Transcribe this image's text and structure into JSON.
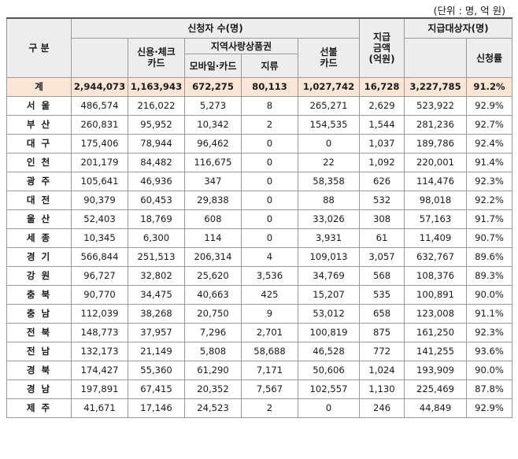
{
  "unit_note": "(단위 : 명, 억 원)",
  "header": {
    "category": "구 분",
    "applicants": "신청자 수(명)",
    "credit_check": "신용·체크\n카드",
    "local_vouchers": "지역사랑상품권",
    "mobile_card": "모바일·카드",
    "paper": "지류",
    "prepaid": "선불\n카드",
    "amount": "지급\n금액\n(억원)",
    "eligible": "지급대상자(명)",
    "rate": "신청률"
  },
  "total": {
    "name": "계",
    "applicants": "2,944,073",
    "credit_check": "1,163,943",
    "mobile_card": "672,275",
    "paper": "80,113",
    "prepaid": "1,027,742",
    "amount": "16,728",
    "eligible": "3,227,785",
    "rate": "91.2%"
  },
  "rows": [
    {
      "name": "서 울",
      "applicants": "486,574",
      "credit_check": "216,022",
      "mobile_card": "5,273",
      "paper": "8",
      "prepaid": "265,271",
      "amount": "2,629",
      "eligible": "523,922",
      "rate": "92.9%"
    },
    {
      "name": "부 산",
      "applicants": "260,831",
      "credit_check": "95,952",
      "mobile_card": "10,342",
      "paper": "2",
      "prepaid": "154,535",
      "amount": "1,544",
      "eligible": "281,236",
      "rate": "92.7%"
    },
    {
      "name": "대 구",
      "applicants": "175,406",
      "credit_check": "78,944",
      "mobile_card": "96,462",
      "paper": "0",
      "prepaid": "0",
      "amount": "1,037",
      "eligible": "189,786",
      "rate": "92.4%"
    },
    {
      "name": "인 천",
      "applicants": "201,179",
      "credit_check": "84,482",
      "mobile_card": "116,675",
      "paper": "0",
      "prepaid": "22",
      "amount": "1,092",
      "eligible": "220,001",
      "rate": "91.4%"
    },
    {
      "name": "광 주",
      "applicants": "105,641",
      "credit_check": "46,936",
      "mobile_card": "347",
      "paper": "0",
      "prepaid": "58,358",
      "amount": "626",
      "eligible": "114,476",
      "rate": "92.3%"
    },
    {
      "name": "대 전",
      "applicants": "90,379",
      "credit_check": "60,453",
      "mobile_card": "29,838",
      "paper": "0",
      "prepaid": "88",
      "amount": "532",
      "eligible": "98,018",
      "rate": "92.2%"
    },
    {
      "name": "울 산",
      "applicants": "52,403",
      "credit_check": "18,769",
      "mobile_card": "608",
      "paper": "0",
      "prepaid": "33,026",
      "amount": "308",
      "eligible": "57,163",
      "rate": "91.7%"
    },
    {
      "name": "세 종",
      "applicants": "10,345",
      "credit_check": "6,300",
      "mobile_card": "114",
      "paper": "0",
      "prepaid": "3,931",
      "amount": "61",
      "eligible": "11,409",
      "rate": "90.7%"
    },
    {
      "name": "경 기",
      "applicants": "566,844",
      "credit_check": "251,513",
      "mobile_card": "206,314",
      "paper": "4",
      "prepaid": "109,013",
      "amount": "3,057",
      "eligible": "632,767",
      "rate": "89.6%"
    },
    {
      "name": "강 원",
      "applicants": "96,727",
      "credit_check": "32,802",
      "mobile_card": "25,620",
      "paper": "3,536",
      "prepaid": "34,769",
      "amount": "568",
      "eligible": "108,376",
      "rate": "89.3%"
    },
    {
      "name": "충 북",
      "applicants": "90,770",
      "credit_check": "34,475",
      "mobile_card": "40,663",
      "paper": "425",
      "prepaid": "15,207",
      "amount": "535",
      "eligible": "100,891",
      "rate": "90.0%"
    },
    {
      "name": "충 남",
      "applicants": "112,039",
      "credit_check": "38,268",
      "mobile_card": "20,750",
      "paper": "9",
      "prepaid": "53,012",
      "amount": "658",
      "eligible": "123,008",
      "rate": "91.1%"
    },
    {
      "name": "전 북",
      "applicants": "148,773",
      "credit_check": "37,957",
      "mobile_card": "7,296",
      "paper": "2,701",
      "prepaid": "100,819",
      "amount": "875",
      "eligible": "161,250",
      "rate": "92.3%"
    },
    {
      "name": "전 남",
      "applicants": "132,173",
      "credit_check": "21,149",
      "mobile_card": "5,808",
      "paper": "58,688",
      "prepaid": "46,528",
      "amount": "772",
      "eligible": "141,255",
      "rate": "93.6%"
    },
    {
      "name": "경 북",
      "applicants": "174,427",
      "credit_check": "55,360",
      "mobile_card": "61,290",
      "paper": "7,171",
      "prepaid": "50,606",
      "amount": "1,024",
      "eligible": "193,909",
      "rate": "90.0%"
    },
    {
      "name": "경 남",
      "applicants": "197,891",
      "credit_check": "67,415",
      "mobile_card": "20,352",
      "paper": "7,567",
      "prepaid": "102,557",
      "amount": "1,130",
      "eligible": "225,469",
      "rate": "87.8%"
    },
    {
      "name": "제 주",
      "applicants": "41,671",
      "credit_check": "17,146",
      "mobile_card": "24,523",
      "paper": "2",
      "prepaid": "0",
      "amount": "246",
      "eligible": "44,849",
      "rate": "92.9%"
    }
  ]
}
